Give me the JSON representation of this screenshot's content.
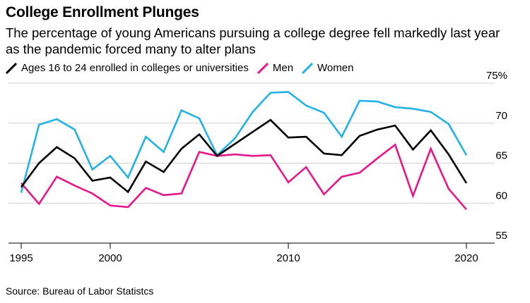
{
  "header": {
    "title": "College Enrollment Plunges",
    "subtitle": "The percentage of young Americans pursuing a college degree fell markedly last year as the pandemic forced many to alter plans"
  },
  "footer": {
    "source": "Source: Bureau of Labor Statistcs"
  },
  "chart_data": {
    "type": "line",
    "title": "College Enrollment Plunges",
    "subtitle": "The percentage of young Americans pursuing a college degree fell markedly last year as the pandemic forced many to alter plans",
    "xlabel": "",
    "ylabel": "",
    "xlim": [
      1995,
      2020
    ],
    "ylim": [
      55,
      75
    ],
    "x_ticks": [
      "1995",
      "2000",
      "2010",
      "2020"
    ],
    "x_tick_values": [
      1995,
      2000,
      2010,
      2020
    ],
    "y_ticks": [
      "75%",
      "70",
      "65",
      "60",
      "55"
    ],
    "y_tick_values": [
      75,
      70,
      65,
      60,
      55
    ],
    "grid": "horizontal",
    "legend_position": "top-left",
    "x": [
      1995,
      1996,
      1997,
      1998,
      1999,
      2000,
      2001,
      2002,
      2003,
      2004,
      2005,
      2006,
      2007,
      2008,
      2009,
      2010,
      2011,
      2012,
      2013,
      2014,
      2015,
      2016,
      2017,
      2018,
      2019,
      2020
    ],
    "series": [
      {
        "name": "Ages 16 to 24 enrolled in colleges or universities",
        "color": "#000000",
        "values": [
          62.0,
          65.0,
          67.0,
          65.6,
          62.8,
          63.2,
          61.4,
          65.2,
          63.9,
          66.8,
          68.6,
          65.9,
          67.4,
          68.9,
          70.4,
          68.2,
          68.3,
          66.2,
          66.0,
          68.4,
          69.2,
          69.7,
          66.7,
          69.1,
          66.1,
          62.5
        ]
      },
      {
        "name": "Men",
        "color": "#e6168c",
        "values": [
          62.5,
          59.9,
          63.3,
          62.2,
          61.2,
          59.7,
          59.5,
          61.9,
          61.0,
          61.2,
          66.4,
          65.9,
          66.1,
          65.9,
          66.0,
          62.6,
          64.5,
          61.1,
          63.3,
          63.8,
          65.6,
          67.3,
          60.9,
          66.8,
          61.8,
          59.2
        ]
      },
      {
        "name": "Women",
        "color": "#22b2e8",
        "values": [
          61.3,
          69.8,
          70.5,
          69.2,
          64.2,
          65.9,
          63.2,
          68.3,
          66.4,
          71.6,
          70.6,
          66.0,
          68.1,
          71.4,
          73.8,
          73.9,
          72.2,
          71.3,
          68.3,
          72.8,
          72.7,
          72.0,
          71.8,
          71.4,
          69.9,
          66.0
        ]
      }
    ]
  }
}
